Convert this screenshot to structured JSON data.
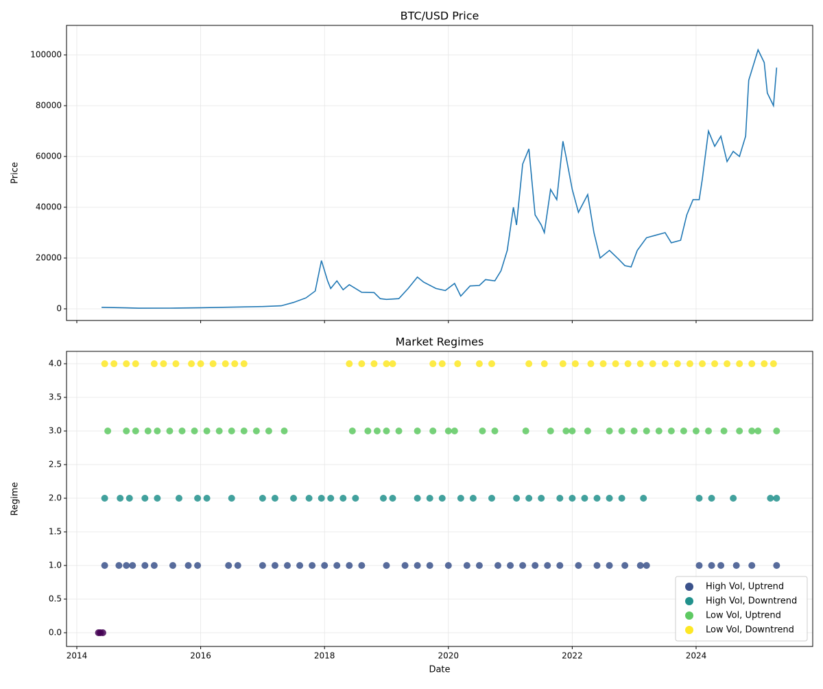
{
  "chart_data": [
    {
      "type": "line",
      "title": "BTC/USD Price",
      "ylabel": "Price",
      "color": "#1f77b4",
      "grid": true,
      "show_xtick_labels": false,
      "xlim": [
        2013.834,
        2025.883
      ],
      "xticks": [
        2014,
        2016,
        2018,
        2020,
        2022,
        2024
      ],
      "ylim": [
        -4595,
        111622
      ],
      "yticks": [
        0,
        20000,
        40000,
        60000,
        80000,
        100000
      ],
      "x": [
        2014.4,
        2014.8,
        2015.0,
        2015.5,
        2016.0,
        2016.5,
        2017.0,
        2017.3,
        2017.5,
        2017.7,
        2017.85,
        2017.95,
        2018.05,
        2018.1,
        2018.2,
        2018.3,
        2018.4,
        2018.6,
        2018.8,
        2018.9,
        2019.0,
        2019.2,
        2019.35,
        2019.5,
        2019.6,
        2019.8,
        2019.95,
        2020.1,
        2020.2,
        2020.35,
        2020.5,
        2020.6,
        2020.75,
        2020.85,
        2020.95,
        2021.05,
        2021.1,
        2021.2,
        2021.3,
        2021.4,
        2021.5,
        2021.55,
        2021.65,
        2021.75,
        2021.85,
        2021.9,
        2022.0,
        2022.1,
        2022.25,
        2022.35,
        2022.45,
        2022.6,
        2022.75,
        2022.85,
        2022.95,
        2023.05,
        2023.2,
        2023.35,
        2023.5,
        2023.6,
        2023.75,
        2023.85,
        2023.95,
        2024.05,
        2024.1,
        2024.2,
        2024.3,
        2024.4,
        2024.5,
        2024.6,
        2024.7,
        2024.8,
        2024.85,
        2024.95,
        2025.0,
        2025.1,
        2025.15,
        2025.25,
        2025.3
      ],
      "values": [
        600,
        380,
        250,
        260,
        430,
        650,
        900,
        1200,
        2500,
        4300,
        7000,
        19000,
        11000,
        8000,
        11000,
        7500,
        9500,
        6500,
        6400,
        4000,
        3700,
        4000,
        8000,
        12500,
        10500,
        8000,
        7200,
        10000,
        5000,
        9000,
        9200,
        11500,
        11000,
        15000,
        23000,
        40000,
        33000,
        57000,
        63000,
        37000,
        33000,
        30000,
        47000,
        43000,
        66000,
        60000,
        47000,
        38000,
        45000,
        30000,
        20000,
        23000,
        19500,
        17000,
        16500,
        23000,
        28000,
        29000,
        30000,
        26000,
        27000,
        37000,
        43000,
        43000,
        51000,
        70000,
        64000,
        68000,
        58000,
        62000,
        60000,
        68000,
        90000,
        98000,
        102000,
        97000,
        85000,
        80000,
        95000
      ]
    },
    {
      "type": "scatter",
      "title": "Market Regimes",
      "xlabel": "Date",
      "ylabel": "Regime",
      "grid": true,
      "legend": "lower right",
      "xlim": [
        2013.834,
        2025.883
      ],
      "xticks": [
        2014,
        2016,
        2018,
        2020,
        2022,
        2024
      ],
      "ylim": [
        -0.204,
        4.184
      ],
      "yticks": [
        {
          "value": 0,
          "label": "0.0"
        },
        {
          "value": 0.5,
          "label": "0.5"
        },
        {
          "value": 1,
          "label": "1.0"
        },
        {
          "value": 1.5,
          "label": "1.5"
        },
        {
          "value": 2,
          "label": "2.0"
        },
        {
          "value": 2.5,
          "label": "2.5"
        },
        {
          "value": 3,
          "label": "3.0"
        },
        {
          "value": 3.5,
          "label": "3.5"
        },
        {
          "value": 4,
          "label": "4.0"
        }
      ],
      "series": [
        {
          "color": "#440154",
          "x": [
            2014.35,
            2014.38,
            2014.42
          ],
          "values": [
            0,
            0,
            0
          ]
        },
        {
          "name": "High Vol, Uptrend",
          "color": "#3b528b",
          "x": [
            2014.45,
            2014.68,
            2014.8,
            2014.9,
            2015.1,
            2015.25,
            2015.55,
            2015.8,
            2015.95,
            2016.45,
            2016.6,
            2017.0,
            2017.2,
            2017.4,
            2017.6,
            2017.8,
            2018.0,
            2018.2,
            2018.4,
            2018.6,
            2019.0,
            2019.3,
            2019.5,
            2019.7,
            2020.0,
            2020.3,
            2020.5,
            2020.8,
            2021.0,
            2021.2,
            2021.4,
            2021.6,
            2021.8,
            2022.1,
            2022.4,
            2022.6,
            2022.85,
            2023.1,
            2023.2,
            2024.05,
            2024.25,
            2024.4,
            2024.65,
            2024.9,
            2025.3
          ],
          "values": [
            1,
            1,
            1,
            1,
            1,
            1,
            1,
            1,
            1,
            1,
            1,
            1,
            1,
            1,
            1,
            1,
            1,
            1,
            1,
            1,
            1,
            1,
            1,
            1,
            1,
            1,
            1,
            1,
            1,
            1,
            1,
            1,
            1,
            1,
            1,
            1,
            1,
            1,
            1,
            1,
            1,
            1,
            1,
            1,
            1
          ]
        },
        {
          "name": "High Vol, Downtrend",
          "color": "#21918c",
          "x": [
            2014.45,
            2014.7,
            2014.85,
            2015.1,
            2015.3,
            2015.65,
            2015.95,
            2016.1,
            2016.5,
            2017.0,
            2017.2,
            2017.5,
            2017.75,
            2017.95,
            2018.1,
            2018.3,
            2018.5,
            2018.95,
            2019.1,
            2019.5,
            2019.7,
            2019.9,
            2020.2,
            2020.4,
            2020.7,
            2021.1,
            2021.3,
            2021.5,
            2021.8,
            2022.0,
            2022.2,
            2022.4,
            2022.6,
            2022.8,
            2023.15,
            2024.05,
            2024.25,
            2024.6,
            2025.2,
            2025.3
          ],
          "values": [
            2,
            2,
            2,
            2,
            2,
            2,
            2,
            2,
            2,
            2,
            2,
            2,
            2,
            2,
            2,
            2,
            2,
            2,
            2,
            2,
            2,
            2,
            2,
            2,
            2,
            2,
            2,
            2,
            2,
            2,
            2,
            2,
            2,
            2,
            2,
            2,
            2,
            2,
            2,
            2
          ]
        },
        {
          "name": "Low Vol, Uptrend",
          "color": "#5ec962",
          "x": [
            2014.5,
            2014.8,
            2014.95,
            2015.15,
            2015.3,
            2015.5,
            2015.7,
            2015.9,
            2016.1,
            2016.3,
            2016.5,
            2016.7,
            2016.9,
            2017.1,
            2017.35,
            2018.45,
            2018.7,
            2018.85,
            2019.0,
            2019.2,
            2019.5,
            2019.75,
            2020.0,
            2020.1,
            2020.55,
            2020.75,
            2021.25,
            2021.65,
            2021.9,
            2022.0,
            2022.25,
            2022.6,
            2022.8,
            2023.0,
            2023.2,
            2023.4,
            2023.6,
            2023.8,
            2024.0,
            2024.2,
            2024.45,
            2024.7,
            2024.9,
            2025.0,
            2025.3
          ],
          "values": [
            3,
            3,
            3,
            3,
            3,
            3,
            3,
            3,
            3,
            3,
            3,
            3,
            3,
            3,
            3,
            3,
            3,
            3,
            3,
            3,
            3,
            3,
            3,
            3,
            3,
            3,
            3,
            3,
            3,
            3,
            3,
            3,
            3,
            3,
            3,
            3,
            3,
            3,
            3,
            3,
            3,
            3,
            3,
            3,
            3
          ]
        },
        {
          "name": "Low Vol, Downtrend",
          "color": "#fde725",
          "x": [
            2014.45,
            2014.6,
            2014.8,
            2014.95,
            2015.25,
            2015.4,
            2015.6,
            2015.85,
            2016.0,
            2016.2,
            2016.4,
            2016.55,
            2016.7,
            2018.4,
            2018.6,
            2018.8,
            2019.0,
            2019.1,
            2019.75,
            2019.9,
            2020.15,
            2020.5,
            2020.7,
            2021.3,
            2021.55,
            2021.85,
            2022.05,
            2022.3,
            2022.5,
            2022.7,
            2022.9,
            2023.1,
            2023.3,
            2023.5,
            2023.7,
            2023.9,
            2024.1,
            2024.3,
            2024.5,
            2024.7,
            2024.9,
            2025.1,
            2025.25
          ],
          "values": [
            4,
            4,
            4,
            4,
            4,
            4,
            4,
            4,
            4,
            4,
            4,
            4,
            4,
            4,
            4,
            4,
            4,
            4,
            4,
            4,
            4,
            4,
            4,
            4,
            4,
            4,
            4,
            4,
            4,
            4,
            4,
            4,
            4,
            4,
            4,
            4,
            4,
            4,
            4,
            4,
            4,
            4,
            4
          ]
        }
      ]
    }
  ]
}
